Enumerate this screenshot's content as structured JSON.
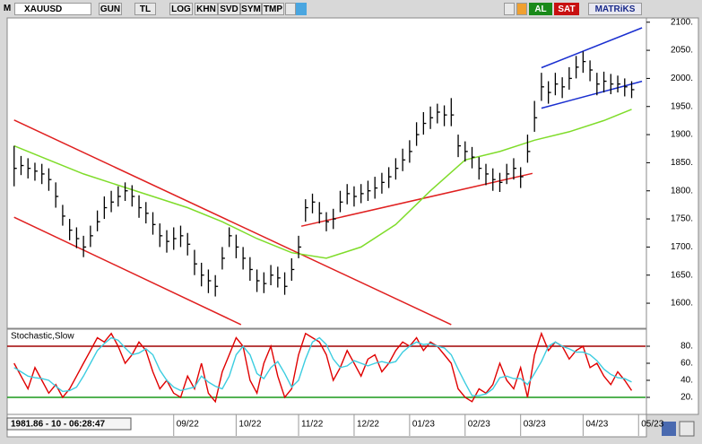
{
  "toolbar": {
    "menu": "M",
    "symbol": "XAUUSD",
    "buttons": [
      "GUN",
      "TL",
      "LOG",
      "KHN",
      "SVD",
      "SYM",
      "TMP"
    ],
    "buy": "AL",
    "sell": "SAT",
    "brand": "MATRiKS"
  },
  "status": "1981.86 - 10 - 06:28:47",
  "chart_data": [
    {
      "type": "ohlc",
      "xlim": [
        -1,
        91
      ],
      "ylim": [
        1557,
        2106
      ],
      "yticks": [
        {
          "value": 1600,
          "label": "1600."
        },
        {
          "value": 1650,
          "label": "1650."
        },
        {
          "value": 1700,
          "label": "1700."
        },
        {
          "value": 1750,
          "label": "1750."
        },
        {
          "value": 1800,
          "label": "1800."
        },
        {
          "value": 1850,
          "label": "1850."
        },
        {
          "value": 1900,
          "label": "1900."
        },
        {
          "value": 1950,
          "label": "1950."
        },
        {
          "value": 2000,
          "label": "2000."
        },
        {
          "value": 2050,
          "label": "2050."
        },
        {
          "value": 2100,
          "label": "2100."
        }
      ],
      "xticks": [
        {
          "value": 23,
          "label": "09/22"
        },
        {
          "value": 32,
          "label": "10/22"
        },
        {
          "value": 41,
          "label": "11/22"
        },
        {
          "value": 49,
          "label": "12/22"
        },
        {
          "value": 57,
          "label": "01/23"
        },
        {
          "value": 65,
          "label": "02/23"
        },
        {
          "value": 73,
          "label": "03/23"
        },
        {
          "value": 82,
          "label": "04/23"
        },
        {
          "value": 90,
          "label": "05/23"
        }
      ],
      "color": "#000000",
      "high": [
        1880,
        1862,
        1858,
        1850,
        1848,
        1840,
        1815,
        1775,
        1750,
        1735,
        1720,
        1738,
        1765,
        1790,
        1800,
        1808,
        1815,
        1810,
        1792,
        1780,
        1762,
        1742,
        1730,
        1735,
        1738,
        1725,
        1695,
        1672,
        1660,
        1650,
        1700,
        1735,
        1722,
        1700,
        1682,
        1660,
        1655,
        1668,
        1665,
        1655,
        1680,
        1720,
        1785,
        1795,
        1780,
        1762,
        1768,
        1800,
        1812,
        1808,
        1812,
        1818,
        1825,
        1832,
        1842,
        1858,
        1875,
        1890,
        1922,
        1940,
        1950,
        1955,
        1952,
        1965,
        1900,
        1888,
        1878,
        1860,
        1848,
        1840,
        1832,
        1848,
        1858,
        1842,
        1900,
        1960,
        2010,
        1995,
        2010,
        2002,
        2020,
        2040,
        2048,
        2032,
        2010,
        2012,
        2008,
        2005,
        2000,
        1995
      ],
      "low": [
        1808,
        1828,
        1822,
        1818,
        1812,
        1800,
        1770,
        1738,
        1712,
        1698,
        1682,
        1700,
        1728,
        1750,
        1762,
        1772,
        1782,
        1772,
        1752,
        1742,
        1722,
        1700,
        1690,
        1695,
        1700,
        1685,
        1650,
        1630,
        1618,
        1612,
        1660,
        1700,
        1680,
        1660,
        1640,
        1620,
        1618,
        1632,
        1628,
        1615,
        1640,
        1680,
        1745,
        1760,
        1742,
        1728,
        1732,
        1762,
        1776,
        1772,
        1778,
        1782,
        1786,
        1795,
        1805,
        1820,
        1835,
        1850,
        1880,
        1900,
        1910,
        1920,
        1915,
        1915,
        1860,
        1852,
        1840,
        1820,
        1810,
        1800,
        1798,
        1812,
        1820,
        1805,
        1850,
        1905,
        1960,
        1955,
        1970,
        1965,
        1980,
        2000,
        2010,
        1995,
        1970,
        1975,
        1972,
        1975,
        1968,
        1965
      ],
      "close": [
        1840,
        1845,
        1840,
        1835,
        1830,
        1820,
        1790,
        1755,
        1730,
        1715,
        1700,
        1720,
        1745,
        1770,
        1780,
        1790,
        1800,
        1790,
        1770,
        1760,
        1740,
        1720,
        1710,
        1715,
        1720,
        1705,
        1670,
        1650,
        1640,
        1630,
        1680,
        1720,
        1700,
        1680,
        1660,
        1640,
        1635,
        1650,
        1645,
        1630,
        1660,
        1700,
        1770,
        1780,
        1760,
        1745,
        1750,
        1780,
        1795,
        1790,
        1795,
        1800,
        1805,
        1815,
        1825,
        1840,
        1855,
        1870,
        1900,
        1920,
        1930,
        1940,
        1935,
        1935,
        1880,
        1870,
        1860,
        1840,
        1830,
        1820,
        1815,
        1830,
        1840,
        1825,
        1870,
        1930,
        1985,
        1975,
        1990,
        1985,
        2000,
        2020,
        2030,
        2015,
        1990,
        1995,
        1990,
        1990,
        1985,
        1980
      ],
      "moving_average": {
        "color": "#7fdc2a",
        "x": [
          0,
          5,
          10,
          15,
          20,
          25,
          30,
          35,
          40,
          45,
          50,
          55,
          60,
          65,
          70,
          75,
          80,
          85,
          89
        ],
        "values": [
          1880,
          1855,
          1830,
          1810,
          1790,
          1770,
          1745,
          1715,
          1690,
          1680,
          1700,
          1740,
          1800,
          1855,
          1870,
          1890,
          1905,
          1925,
          1945
        ]
      },
      "trendlines": [
        {
          "color": "#e02020",
          "x": [
            0,
            63
          ],
          "values": [
            1926,
            1562
          ]
        },
        {
          "color": "#e02020",
          "x": [
            0,
            32.7
          ],
          "values": [
            1753,
            1562
          ]
        },
        {
          "color": "#e02020",
          "x": [
            41.4,
            74.7
          ],
          "values": [
            1737,
            1831
          ]
        },
        {
          "color": "#1a2fd0",
          "x": [
            76,
            90.5
          ],
          "values": [
            2019,
            2090
          ]
        },
        {
          "color": "#1a2fd0",
          "x": [
            76,
            90.5
          ],
          "values": [
            1947,
            1995
          ]
        }
      ]
    },
    {
      "type": "line",
      "title": "Stochastic,Slow",
      "xlim": [
        -1,
        91
      ],
      "ylim": [
        0,
        100
      ],
      "yticks": [
        {
          "value": 20,
          "label": "20."
        },
        {
          "value": 40,
          "label": "40."
        },
        {
          "value": 60,
          "label": "60."
        },
        {
          "value": 80,
          "label": "80."
        }
      ],
      "levels": [
        {
          "value": 80,
          "color": "#a00000"
        },
        {
          "value": 20,
          "color": "#1a9a1a"
        }
      ],
      "series": [
        {
          "color": "#e00000",
          "values": [
            60,
            45,
            30,
            55,
            40,
            25,
            35,
            20,
            30,
            45,
            60,
            75,
            90,
            85,
            95,
            80,
            60,
            70,
            85,
            75,
            50,
            30,
            40,
            25,
            20,
            45,
            30,
            60,
            25,
            15,
            50,
            70,
            90,
            80,
            40,
            25,
            60,
            80,
            45,
            20,
            30,
            70,
            95,
            90,
            85,
            70,
            40,
            55,
            75,
            60,
            45,
            65,
            70,
            50,
            60,
            75,
            85,
            80,
            90,
            75,
            85,
            80,
            70,
            60,
            30,
            20,
            15,
            30,
            25,
            35,
            60,
            40,
            30,
            55,
            20,
            70,
            95,
            75,
            85,
            80,
            65,
            75,
            80,
            55,
            60,
            45,
            35,
            50,
            40,
            28
          ]
        },
        {
          "color": "#3ccde0",
          "values": [
            55,
            50,
            45,
            43,
            42,
            40,
            33,
            27,
            28,
            32,
            45,
            60,
            75,
            83,
            90,
            87,
            78,
            70,
            72,
            77,
            70,
            52,
            40,
            32,
            28,
            30,
            32,
            45,
            38,
            33,
            30,
            45,
            70,
            80,
            70,
            48,
            42,
            55,
            62,
            48,
            32,
            40,
            65,
            85,
            90,
            82,
            65,
            55,
            57,
            63,
            60,
            57,
            60,
            62,
            60,
            62,
            73,
            80,
            85,
            82,
            83,
            80,
            78,
            70,
            53,
            37,
            22,
            22,
            24,
            30,
            43,
            45,
            42,
            42,
            35,
            48,
            62,
            80,
            85,
            80,
            77,
            73,
            73,
            70,
            63,
            53,
            47,
            43,
            42,
            38
          ]
        }
      ]
    }
  ]
}
